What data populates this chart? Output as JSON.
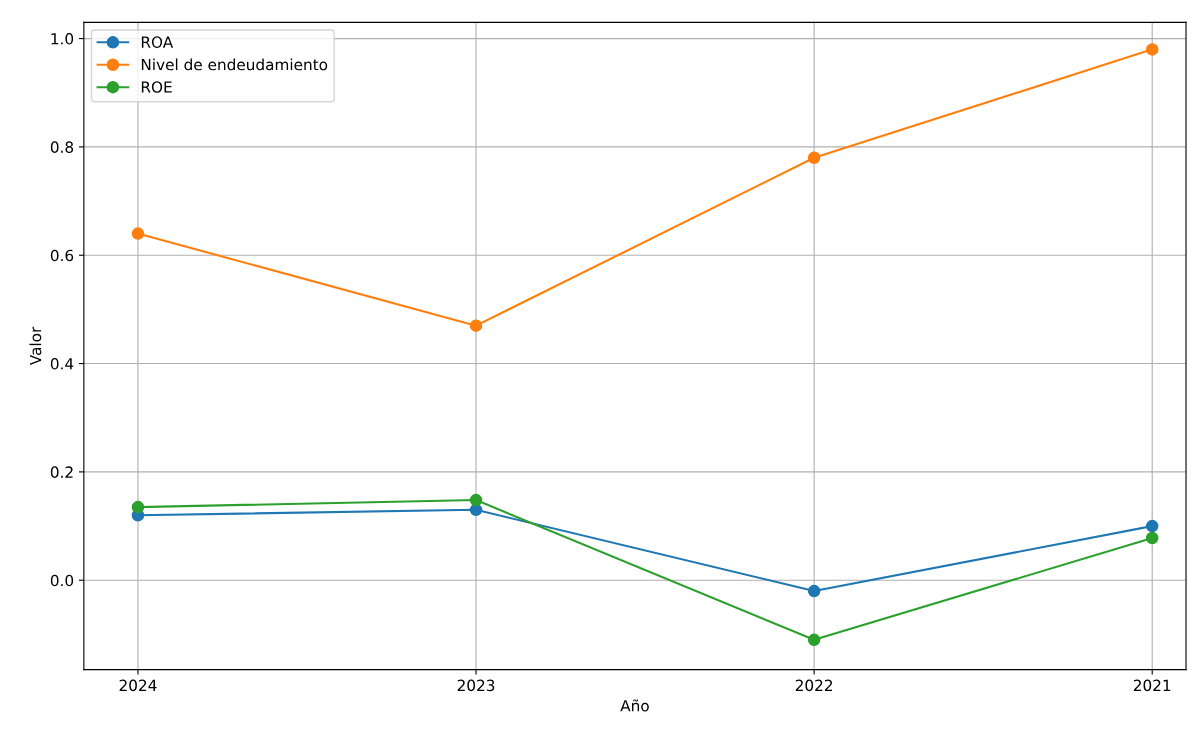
{
  "chart_data": {
    "type": "line",
    "xlabel": "Año",
    "ylabel": "Valor",
    "x": [
      2024,
      2023,
      2022,
      2021
    ],
    "xlim": [
      2024.16,
      2020.9
    ],
    "xticks": [
      2024,
      2023,
      2022,
      2021
    ],
    "ylim": [
      -0.165,
      1.03
    ],
    "yticks": [
      {
        "value": 0,
        "label": "0.0"
      },
      0.2,
      0.4,
      0.6,
      0.8,
      {
        "value": 1,
        "label": "1.0"
      }
    ],
    "series": [
      {
        "name": "ROA",
        "color": "#1f77b4",
        "values": [
          0.12,
          0.13,
          -0.02,
          0.1
        ]
      },
      {
        "name": "Nivel de endeudamiento",
        "color": "#ff7f0e",
        "values": [
          0.64,
          0.47,
          0.78,
          0.98
        ]
      },
      {
        "name": "ROE",
        "color": "#2ca02c",
        "values": [
          0.135,
          0.148,
          -0.11,
          0.078
        ]
      }
    ],
    "grid": true,
    "legend": "top left",
    "marker": "circle",
    "line_style": "solid"
  }
}
